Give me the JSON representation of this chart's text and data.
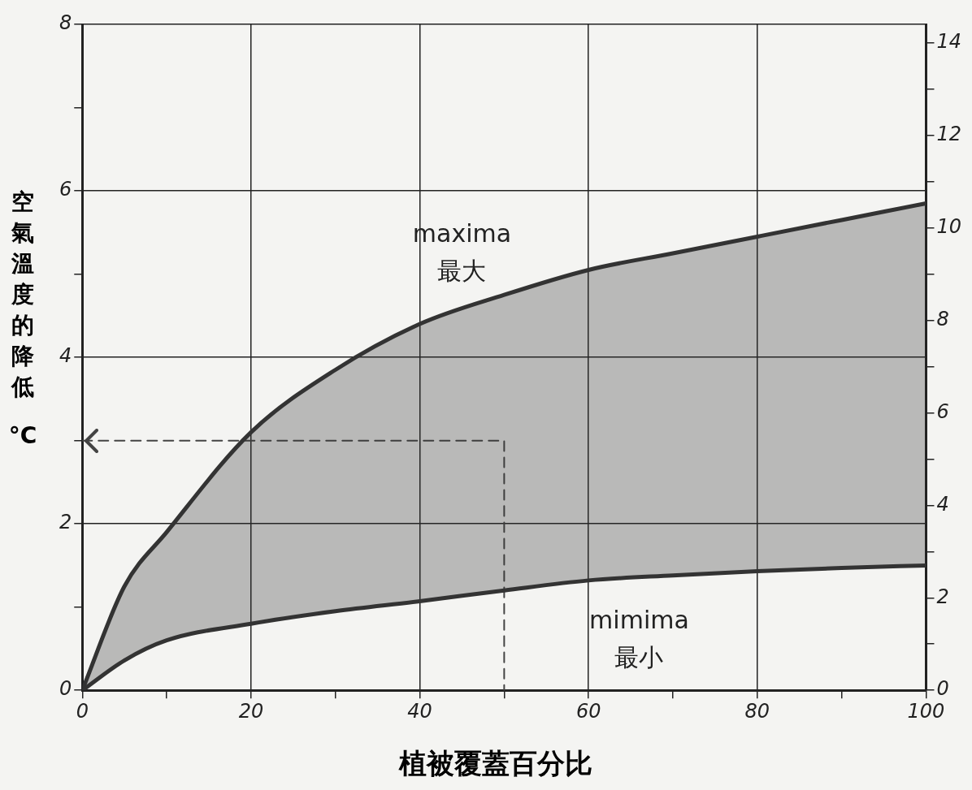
{
  "chart_data": {
    "type": "line",
    "xlabel": "植被覆蓋百分比",
    "ylabel": "空氣溫度的降低 °C",
    "xlim": [
      0,
      100
    ],
    "xticks": [
      0,
      {
        "value": 10,
        "label": null
      },
      20,
      {
        "value": 30,
        "label": null
      },
      40,
      {
        "value": 50,
        "label": null
      },
      60,
      {
        "value": 70,
        "label": null
      },
      80,
      {
        "value": 90,
        "label": null
      },
      100
    ],
    "ylim": [
      0,
      8
    ],
    "yticks": [
      0,
      {
        "value": 1,
        "label": null
      },
      2,
      {
        "value": 3,
        "label": null
      },
      4,
      {
        "value": 5,
        "label": null
      },
      6,
      {
        "value": 7,
        "label": null
      },
      8
    ],
    "y2lim": [
      0,
      14.4
    ],
    "y2ticks": [
      0,
      {
        "value": 1,
        "label": null
      },
      2,
      {
        "value": 3,
        "label": null
      },
      4,
      {
        "value": 5,
        "label": null
      },
      6,
      {
        "value": 7,
        "label": null
      },
      8,
      {
        "value": 9,
        "label": null
      },
      10,
      {
        "value": 11,
        "label": null
      },
      12,
      {
        "value": 13,
        "label": null
      },
      14
    ],
    "grid": true,
    "marker": "none",
    "legend": false,
    "series": [
      {
        "name": "mimima 最小",
        "color": "#333333",
        "x": [
          0,
          5,
          10,
          20,
          30,
          40,
          50,
          60,
          70,
          80,
          90,
          100
        ],
        "values": [
          0,
          0.36,
          0.6,
          0.8,
          0.95,
          1.07,
          1.2,
          1.32,
          1.38,
          1.43,
          1.47,
          1.5
        ]
      },
      {
        "name": "maxima 最大",
        "type": "area",
        "color": "#333333",
        "x": [
          0,
          5,
          10,
          20,
          30,
          40,
          50,
          60,
          70,
          80,
          90,
          100
        ],
        "values": [
          0,
          1.25,
          1.9,
          3.1,
          3.85,
          4.4,
          4.75,
          5.05,
          5.25,
          5.45,
          5.65,
          5.85
        ]
      },
      {
        "color": "#444444",
        "line_style": "dashed",
        "x": [
          0,
          50,
          50
        ],
        "values": [
          3,
          3,
          0
        ]
      }
    ]
  }
}
